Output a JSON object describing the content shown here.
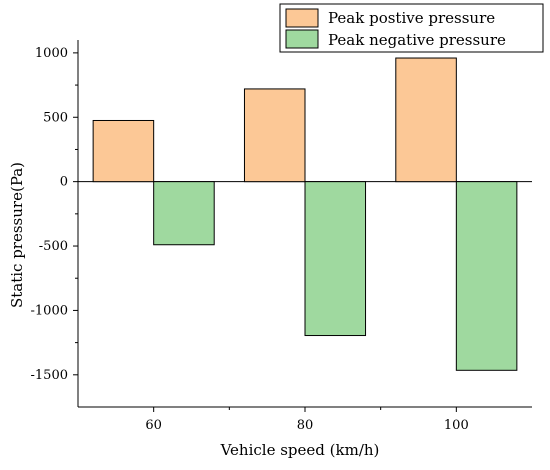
{
  "chart_data": {
    "type": "bar",
    "categories": [
      "60",
      "80",
      "100"
    ],
    "series": [
      {
        "name": "Peak postive pressure",
        "values": [
          475,
          720,
          960
        ],
        "color": "#fcc896"
      },
      {
        "name": "Peak negative pressure",
        "values": [
          -490,
          -1195,
          -1465
        ],
        "color": "#9fd99f"
      }
    ],
    "xlabel": "Vehicle speed (km/h)",
    "ylabel": "Static pressure(Pa)",
    "ylim": [
      -1750,
      1100
    ],
    "yticks": [
      1000,
      500,
      0,
      -500,
      -1000,
      -1500
    ],
    "ytick_labels": [
      "1000",
      "500",
      "0",
      "-500",
      "-1000",
      "-1500"
    ],
    "legend_position": "top-right",
    "grid": false
  }
}
